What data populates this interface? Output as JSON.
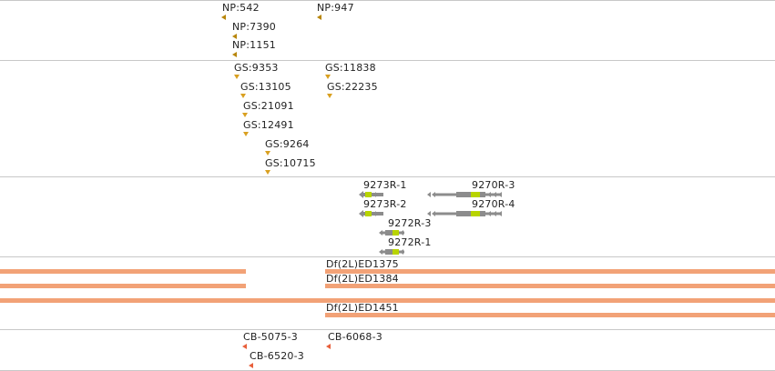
{
  "colors": {
    "np_marker": "#b8860b",
    "gs_marker": "#d9a020",
    "gene_gray": "#8c8c8c",
    "gene_exon": "#b8d400",
    "deficiency_bar": "#f2a277",
    "cb_marker": "#e8603c",
    "track_divider": "#c8c8c8"
  },
  "tracks": {
    "np_insertions": [
      {
        "label": "NP:542"
      },
      {
        "label": "NP:947"
      },
      {
        "label": "NP:7390"
      },
      {
        "label": "NP:1151"
      }
    ],
    "gs_insertions": [
      {
        "label": "GS:9353"
      },
      {
        "label": "GS:11838"
      },
      {
        "label": "GS:13105"
      },
      {
        "label": "GS:22235"
      },
      {
        "label": "GS:21091"
      },
      {
        "label": "GS:12491"
      },
      {
        "label": "GS:9264"
      },
      {
        "label": "GS:10715"
      }
    ],
    "transcripts": [
      {
        "label": "9273R-1"
      },
      {
        "label": "9270R-3"
      },
      {
        "label": "9273R-2"
      },
      {
        "label": "9270R-4"
      },
      {
        "label": "9272R-3"
      },
      {
        "label": "9272R-1"
      }
    ],
    "deficiencies": [
      {
        "label": "Df(2L)ED1375"
      },
      {
        "label": "Df(2L)ED1384"
      },
      {
        "label": "Df(2L)ED1451"
      }
    ],
    "cb_insertions": [
      {
        "label": "CB-5075-3"
      },
      {
        "label": "CB-6068-3"
      },
      {
        "label": "CB-6520-3"
      }
    ]
  }
}
